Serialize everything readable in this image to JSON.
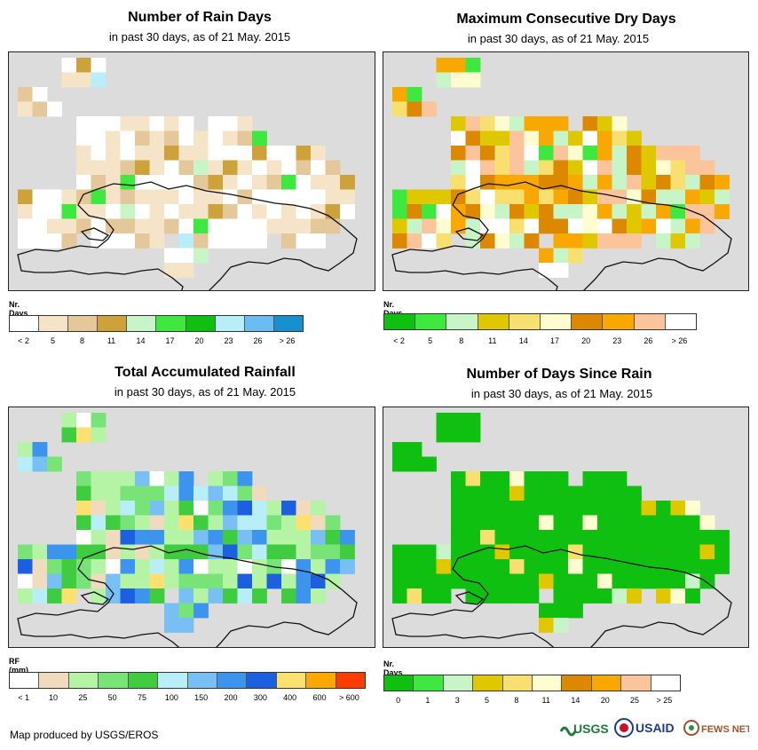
{
  "panels": [
    {
      "title": "Number of Rain Days",
      "subtitle": "in past 30 days, as of 21 May. 2015",
      "legend_title": "Nr. Days",
      "legend_colors": [
        "#ffffff",
        "#f5e4c8",
        "#e5c89a",
        "#cda23a",
        "#c8f5c8",
        "#3ee83e",
        "#10c010",
        "#b8eef8",
        "#6cbcf4",
        "#1890d0"
      ],
      "legend_labels": [
        "< 2",
        "5",
        "8",
        "11",
        "14",
        "17",
        "20",
        "23",
        "26",
        "> 26"
      ]
    },
    {
      "title": "Maximum Consecutive Dry Days",
      "subtitle": "in past 30 days, as of 21 May. 2015",
      "legend_title": "Nr. Days",
      "legend_colors": [
        "#10c010",
        "#3ee83e",
        "#c8f5c8",
        "#e0c800",
        "#f8e070",
        "#fffcd0",
        "#dc8800",
        "#f8a800",
        "#fcc49a",
        "#ffffff"
      ],
      "legend_labels": [
        "< 2",
        "5",
        "8",
        "11",
        "14",
        "17",
        "20",
        "23",
        "26",
        "> 26"
      ]
    },
    {
      "title": "Total Accumulated Rainfall",
      "subtitle": "in past 30 days, as of 21 May. 2015",
      "legend_title": "RF (mm)",
      "legend_colors": [
        "#ffffff",
        "#f0dcbc",
        "#b4f4a4",
        "#78e478",
        "#40cc40",
        "#b8eef8",
        "#78c0f4",
        "#3c94ec",
        "#1c60e0",
        "#fce070",
        "#fca800",
        "#fc3c00"
      ],
      "legend_labels": [
        "< 1",
        "10",
        "25",
        "50",
        "75",
        "100",
        "150",
        "200",
        "300",
        "400",
        "600",
        "> 600"
      ]
    },
    {
      "title": "Number of Days Since Rain",
      "subtitle": "in past 30 days, as of 21 May. 2015",
      "legend_title": "Nr. Days",
      "legend_colors": [
        "#10c010",
        "#3ee83e",
        "#c8f5c8",
        "#e0c800",
        "#f8e070",
        "#fffcd0",
        "#dc8800",
        "#f8a800",
        "#fcc49a",
        "#ffffff"
      ],
      "legend_labels": [
        "0",
        "1",
        "3",
        "5",
        "8",
        "11",
        "14",
        "20",
        "25",
        "> 25"
      ]
    }
  ],
  "credit": "Map produced by USGS/EROS",
  "logos": [
    "USGS",
    "USAID",
    "FEWS NET"
  ]
}
